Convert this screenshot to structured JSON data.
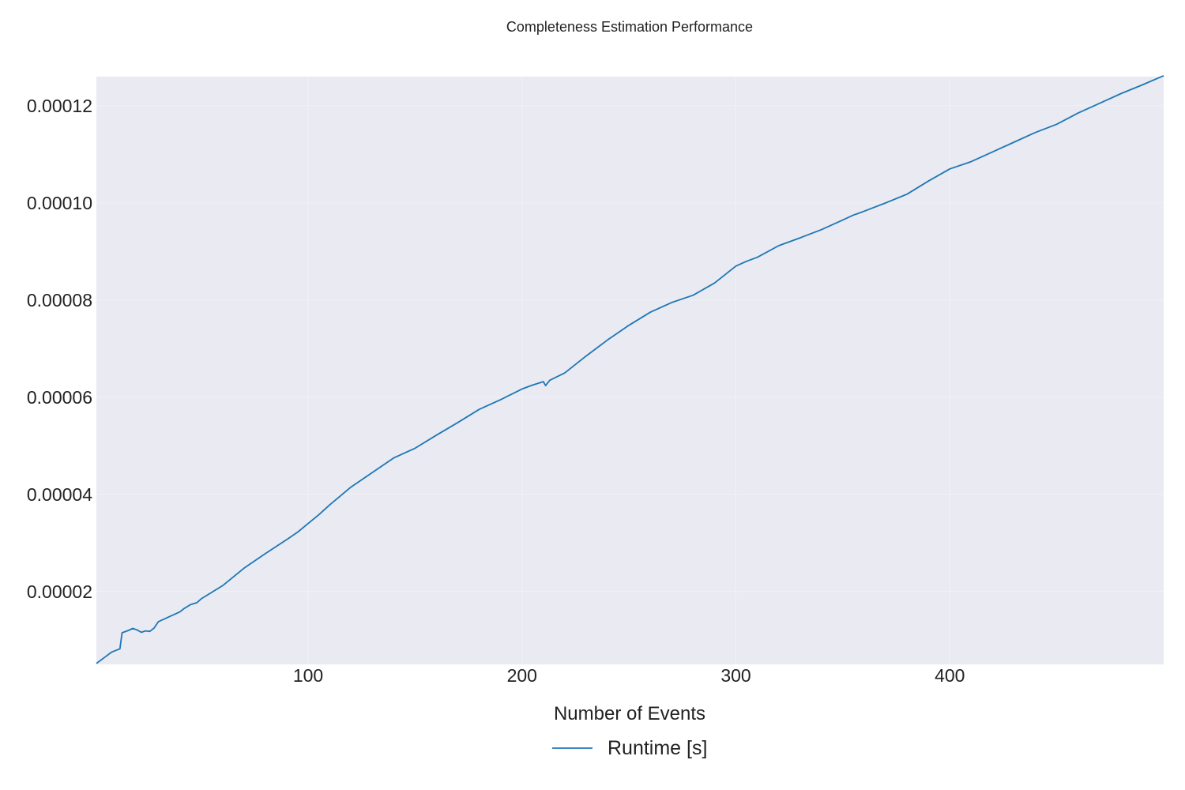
{
  "chart_data": {
    "type": "line",
    "title": "Completeness Estimation Performance",
    "xlabel": "Number of Events",
    "ylabel": "",
    "xlim": [
      1,
      500
    ],
    "ylim": [
      5e-06,
      0.000126
    ],
    "x_ticks": [
      100,
      200,
      300,
      400
    ],
    "y_ticks": [
      2e-05,
      4e-05,
      6e-05,
      8e-05,
      0.0001,
      0.00012
    ],
    "x_tick_labels": [
      "100",
      "200",
      "300",
      "400"
    ],
    "y_tick_labels": [
      "0.00002",
      "0.00004",
      "0.00006",
      "0.00008",
      "0.00010",
      "0.00012"
    ],
    "grid": true,
    "legend_position": "bottom-center",
    "series": [
      {
        "name": "Runtime [s]",
        "color": "#1f77b4",
        "x": [
          1,
          5,
          8,
          12,
          13,
          16,
          18,
          20,
          22,
          24,
          26,
          28,
          30,
          40,
          42,
          45,
          48,
          50,
          60,
          70,
          80,
          90,
          95,
          100,
          105,
          110,
          120,
          130,
          140,
          150,
          160,
          170,
          180,
          190,
          200,
          205,
          210,
          211,
          213,
          220,
          230,
          240,
          250,
          260,
          270,
          280,
          290,
          300,
          305,
          310,
          320,
          330,
          340,
          350,
          355,
          357,
          360,
          370,
          380,
          390,
          400,
          410,
          420,
          430,
          440,
          450,
          460,
          470,
          480,
          490,
          500
        ],
        "y": [
          5.2e-06,
          6.5e-06,
          7.5e-06,
          8.2e-06,
          1.15e-05,
          1.2e-05,
          1.24e-05,
          1.21e-05,
          1.16e-05,
          1.19e-05,
          1.18e-05,
          1.25e-05,
          1.38e-05,
          1.58e-05,
          1.65e-05,
          1.73e-05,
          1.77e-05,
          1.85e-05,
          2.12e-05,
          2.48e-05,
          2.78e-05,
          3.07e-05,
          3.22e-05,
          3.4e-05,
          3.58e-05,
          3.78e-05,
          4.15e-05,
          4.45e-05,
          4.75e-05,
          4.95e-05,
          5.22e-05,
          5.48e-05,
          5.75e-05,
          5.95e-05,
          6.17e-05,
          6.25e-05,
          6.32e-05,
          6.24e-05,
          6.35e-05,
          6.5e-05,
          6.85e-05,
          7.18e-05,
          7.48e-05,
          7.75e-05,
          7.95e-05,
          8.1e-05,
          8.35e-05,
          8.7e-05,
          8.8e-05,
          8.88e-05,
          9.12e-05,
          9.28e-05,
          9.45e-05,
          9.65e-05,
          9.75e-05,
          9.78e-05,
          9.83e-05,
          0.0001,
          0.0001018,
          0.0001045,
          0.000107,
          0.0001085,
          0.0001105,
          0.0001125,
          0.0001145,
          0.0001162,
          0.0001185,
          0.0001205,
          0.0001225,
          0.0001243,
          0.0001262
        ]
      }
    ]
  }
}
